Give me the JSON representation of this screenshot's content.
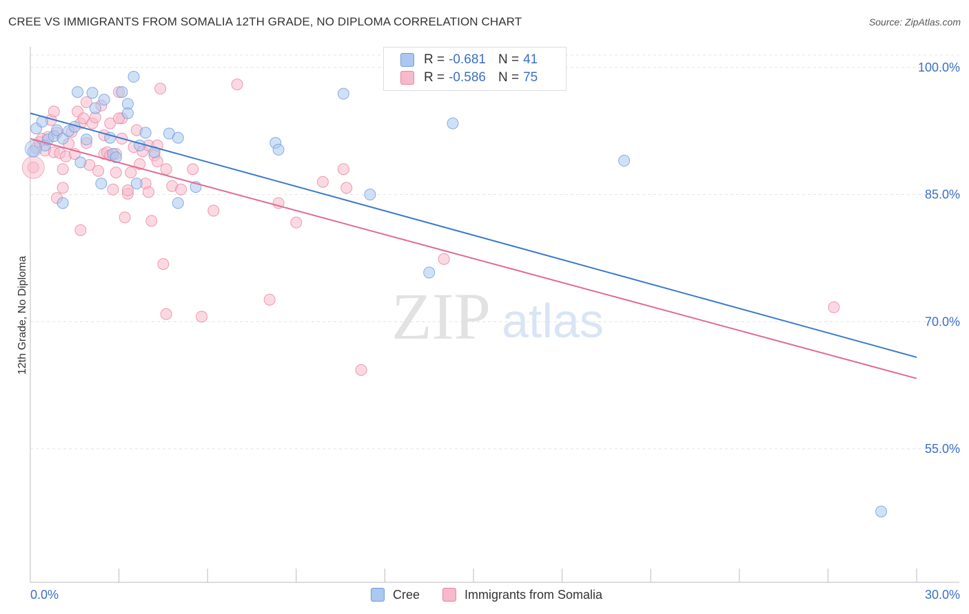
{
  "header": {
    "title": "CREE VS IMMIGRANTS FROM SOMALIA 12TH GRADE, NO DIPLOMA CORRELATION CHART",
    "source": "Source: ZipAtlas.com"
  },
  "watermark": {
    "zip": "ZIP",
    "atlas": "atlas"
  },
  "legend": {
    "r_label": "R =",
    "n_label": "N =",
    "rows": [
      {
        "r": "-0.681",
        "n": "41",
        "color": "#aac8f0"
      },
      {
        "r": "-0.586",
        "n": "75",
        "color": "#f7b9cc"
      }
    ]
  },
  "bottom_legend": {
    "items": [
      {
        "label": "Cree",
        "color": "#aac8f0"
      },
      {
        "label": "Immigrants from Somalia",
        "color": "#f7b9cc"
      }
    ]
  },
  "colors": {
    "cree_fill": "#aac8f0",
    "cree_stroke": "#6f9ad8",
    "cree_line": "#3a78cc",
    "somalia_fill": "#f7b9cc",
    "somalia_stroke": "#e8849f",
    "somalia_line": "#e06a93",
    "tick_label": "#3a6fc4",
    "grid": "#e3e3e3"
  },
  "chart_data": {
    "type": "scatter",
    "title": "CREE VS IMMIGRANTS FROM SOMALIA 12TH GRADE, NO DIPLOMA CORRELATION CHART",
    "xlabel": "",
    "ylabel": "12th Grade, No Diploma",
    "xlim": [
      0,
      30
    ],
    "ylim": [
      40,
      102
    ],
    "x_tick_labels": [
      {
        "value": 0,
        "label": "0.0%"
      },
      {
        "value": 30,
        "label": "30.0%"
      }
    ],
    "y_tick_labels": [
      {
        "value": 100,
        "label": "100.0%"
      },
      {
        "value": 85,
        "label": "85.0%"
      },
      {
        "value": 70,
        "label": "70.0%"
      },
      {
        "value": 55,
        "label": "55.0%"
      }
    ],
    "x_minor_ticks": [
      0,
      3,
      6,
      9,
      12,
      15,
      18,
      21,
      24,
      27,
      30
    ],
    "grid": true,
    "legend_position": "top-center",
    "series": [
      {
        "name": "Cree",
        "r": -0.681,
        "n": 41,
        "trend": {
          "x": [
            0,
            30
          ],
          "y": [
            94.6,
            65.8
          ]
        },
        "points": [
          [
            0.2,
            92.8
          ],
          [
            0.4,
            93.6
          ],
          [
            0.5,
            90.8
          ],
          [
            0.6,
            91.5
          ],
          [
            0.8,
            91.9
          ],
          [
            0.9,
            92.6
          ],
          [
            1.1,
            91.6
          ],
          [
            1.3,
            92.5
          ],
          [
            1.5,
            93.0
          ],
          [
            1.6,
            97.1
          ],
          [
            1.7,
            88.8
          ],
          [
            1.9,
            91.5
          ],
          [
            2.1,
            97.0
          ],
          [
            2.2,
            95.2
          ],
          [
            2.5,
            96.2
          ],
          [
            2.7,
            91.7
          ],
          [
            2.8,
            89.8
          ],
          [
            2.9,
            89.4
          ],
          [
            3.1,
            97.1
          ],
          [
            3.3,
            95.7
          ],
          [
            3.3,
            94.6
          ],
          [
            3.5,
            98.9
          ],
          [
            3.7,
            90.8
          ],
          [
            3.9,
            92.3
          ],
          [
            4.2,
            90.0
          ],
          [
            4.7,
            92.2
          ],
          [
            5.0,
            91.7
          ],
          [
            5.6,
            85.9
          ],
          [
            2.4,
            86.3
          ],
          [
            3.6,
            86.3
          ],
          [
            5.0,
            84.0
          ],
          [
            1.1,
            84.0
          ],
          [
            0.1,
            90.1
          ],
          [
            8.3,
            91.1
          ],
          [
            8.4,
            90.3
          ],
          [
            10.6,
            96.9
          ],
          [
            11.5,
            85.0
          ],
          [
            14.3,
            93.4
          ],
          [
            20.1,
            89.0
          ],
          [
            13.5,
            75.8
          ],
          [
            28.8,
            47.6
          ]
        ]
      },
      {
        "name": "Immigrants from Somalia",
        "r": -0.586,
        "n": 75,
        "trend": {
          "x": [
            0,
            30
          ],
          "y": [
            91.6,
            63.3
          ]
        },
        "points": [
          [
            0.1,
            88.2
          ],
          [
            0.2,
            90.5
          ],
          [
            0.3,
            91.2
          ],
          [
            0.4,
            91.6
          ],
          [
            0.5,
            90.2
          ],
          [
            0.6,
            91.8
          ],
          [
            0.7,
            93.8
          ],
          [
            0.8,
            90.0
          ],
          [
            0.8,
            94.8
          ],
          [
            0.9,
            92.3
          ],
          [
            1.0,
            89.9
          ],
          [
            1.1,
            85.8
          ],
          [
            1.1,
            88.0
          ],
          [
            1.2,
            89.5
          ],
          [
            1.3,
            91.0
          ],
          [
            1.4,
            92.4
          ],
          [
            1.5,
            89.8
          ],
          [
            1.6,
            94.8
          ],
          [
            1.7,
            93.4
          ],
          [
            1.8,
            94.0
          ],
          [
            1.9,
            91.1
          ],
          [
            1.9,
            95.9
          ],
          [
            2.0,
            88.5
          ],
          [
            2.1,
            93.4
          ],
          [
            2.2,
            94.1
          ],
          [
            2.3,
            87.8
          ],
          [
            2.4,
            95.5
          ],
          [
            2.5,
            92.0
          ],
          [
            2.5,
            89.8
          ],
          [
            2.6,
            90.0
          ],
          [
            2.7,
            93.4
          ],
          [
            2.7,
            89.6
          ],
          [
            2.8,
            85.6
          ],
          [
            2.9,
            89.8
          ],
          [
            2.9,
            87.6
          ],
          [
            3.0,
            97.1
          ],
          [
            3.1,
            94.0
          ],
          [
            3.1,
            91.6
          ],
          [
            3.2,
            82.3
          ],
          [
            3.3,
            85.1
          ],
          [
            3.3,
            85.5
          ],
          [
            3.4,
            87.6
          ],
          [
            3.5,
            90.6
          ],
          [
            3.6,
            92.6
          ],
          [
            3.7,
            88.6
          ],
          [
            3.8,
            90.1
          ],
          [
            3.9,
            86.3
          ],
          [
            4.0,
            90.8
          ],
          [
            4.2,
            89.6
          ],
          [
            4.3,
            88.9
          ],
          [
            4.3,
            90.8
          ],
          [
            4.4,
            97.5
          ],
          [
            4.6,
            88.0
          ],
          [
            4.8,
            86.0
          ],
          [
            5.1,
            85.6
          ],
          [
            5.5,
            88.0
          ],
          [
            6.2,
            83.1
          ],
          [
            7.0,
            98.0
          ],
          [
            4.1,
            81.9
          ],
          [
            1.7,
            80.8
          ],
          [
            4.5,
            76.8
          ],
          [
            4.6,
            70.9
          ],
          [
            5.8,
            70.6
          ],
          [
            8.1,
            72.6
          ],
          [
            8.4,
            84.0
          ],
          [
            9.0,
            81.7
          ],
          [
            9.9,
            86.5
          ],
          [
            10.6,
            88.0
          ],
          [
            10.7,
            85.8
          ],
          [
            14.0,
            77.4
          ],
          [
            11.2,
            64.3
          ],
          [
            27.2,
            71.7
          ],
          [
            0.9,
            84.6
          ],
          [
            3.0,
            94.0
          ],
          [
            4.0,
            85.3
          ]
        ]
      }
    ]
  }
}
